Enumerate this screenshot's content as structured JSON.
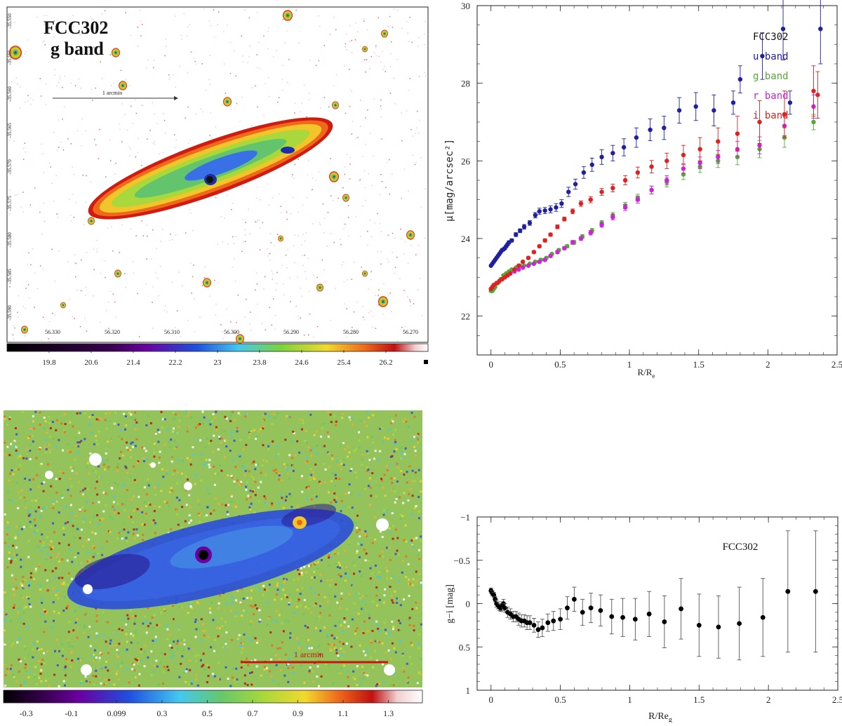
{
  "chart_data": [
    {
      "type": "image",
      "panel": "top-left",
      "title": "FCC302",
      "subtitle": "g band",
      "scale_label": "1 arcmin",
      "ra_ticks": [
        "56.330",
        "56.320",
        "56.310",
        "56.300",
        "56.290",
        "56.280",
        "56.270"
      ],
      "dec_ticks": [
        "-35.550",
        "-35.555",
        "-35.560",
        "-35.565",
        "-35.570",
        "-35.575",
        "-35.580",
        "-35.585",
        "-35.590"
      ],
      "colorbar_ticks": [
        "19.8",
        "20.6",
        "21.4",
        "22.2",
        "23",
        "23.8",
        "24.6",
        "25.4",
        "26.2"
      ],
      "colorbar_range": [
        19.0,
        27.0
      ]
    },
    {
      "type": "scatter",
      "panel": "top-right",
      "title": "FCC302",
      "xlabel": "R/R",
      "xlabel_sub": "e",
      "ylabel": "μ[mag/arcsec²]",
      "xlim": [
        -0.1,
        2.5
      ],
      "ylim": [
        30,
        21
      ],
      "xticks": [
        "0",
        "0.5",
        "1",
        "1.5",
        "2",
        "2.5"
      ],
      "yticks": [
        "22",
        "24",
        "26",
        "28",
        "30"
      ],
      "legend": [
        "FCC302",
        "u band",
        "g band",
        "r band",
        "i band"
      ],
      "series": [
        {
          "name": "u band",
          "color": "#1f1fa0",
          "x": [
            0.0,
            0.01,
            0.02,
            0.03,
            0.04,
            0.05,
            0.06,
            0.07,
            0.08,
            0.09,
            0.1,
            0.11,
            0.12,
            0.13,
            0.15,
            0.18,
            0.21,
            0.24,
            0.28,
            0.32,
            0.35,
            0.39,
            0.43,
            0.47,
            0.51,
            0.56,
            0.61,
            0.67,
            0.73,
            0.8,
            0.88,
            0.96,
            1.05,
            1.15,
            1.25,
            1.36,
            1.48,
            1.61,
            1.75,
            1.8,
            1.96,
            2.11,
            2.16,
            2.38
          ],
          "y": [
            23.3,
            23.35,
            23.4,
            23.45,
            23.5,
            23.55,
            23.6,
            23.65,
            23.7,
            23.72,
            23.75,
            23.8,
            23.85,
            23.9,
            23.95,
            24.1,
            24.2,
            24.3,
            24.4,
            24.6,
            24.7,
            24.72,
            24.75,
            24.8,
            24.9,
            25.2,
            25.4,
            25.7,
            25.9,
            26.1,
            26.2,
            26.35,
            26.6,
            26.8,
            26.85,
            27.3,
            27.4,
            27.3,
            27.5,
            28.1,
            28.7,
            29.4,
            27.5,
            29.4
          ],
          "err": [
            0.02,
            0.02,
            0.02,
            0.02,
            0.02,
            0.02,
            0.02,
            0.02,
            0.03,
            0.03,
            0.03,
            0.03,
            0.03,
            0.04,
            0.04,
            0.05,
            0.05,
            0.06,
            0.06,
            0.07,
            0.08,
            0.08,
            0.09,
            0.1,
            0.1,
            0.12,
            0.13,
            0.15,
            0.17,
            0.19,
            0.2,
            0.22,
            0.25,
            0.28,
            0.3,
            0.33,
            0.36,
            0.4,
            0.3,
            0.35,
            0.6,
            0.8,
            0.3,
            0.9
          ]
        },
        {
          "name": "g band",
          "color": "#55aa33",
          "x": [
            0.0,
            0.01,
            0.02,
            0.03,
            0.05,
            0.07,
            0.09,
            0.11,
            0.13,
            0.15,
            0.18,
            0.21,
            0.24,
            0.28,
            0.32,
            0.36,
            0.4,
            0.44,
            0.49,
            0.55,
            0.6,
            0.66,
            0.73,
            0.8,
            0.88,
            0.97,
            1.06,
            1.16,
            1.27,
            1.39,
            1.51,
            1.64,
            1.78,
            1.94,
            2.12,
            2.33
          ],
          "y": [
            22.65,
            22.65,
            22.7,
            22.75,
            22.85,
            22.95,
            23.05,
            23.1,
            23.15,
            23.2,
            23.25,
            23.3,
            23.3,
            23.35,
            23.4,
            23.45,
            23.5,
            23.6,
            23.7,
            23.8,
            23.9,
            24.05,
            24.2,
            24.4,
            24.6,
            24.85,
            25.05,
            25.25,
            25.45,
            25.65,
            25.85,
            26.0,
            26.1,
            26.3,
            26.6,
            27.0
          ],
          "err": [
            0.01,
            0.01,
            0.01,
            0.01,
            0.01,
            0.01,
            0.01,
            0.01,
            0.01,
            0.02,
            0.02,
            0.02,
            0.02,
            0.02,
            0.03,
            0.03,
            0.03,
            0.03,
            0.04,
            0.04,
            0.05,
            0.05,
            0.06,
            0.06,
            0.07,
            0.08,
            0.09,
            0.1,
            0.12,
            0.13,
            0.15,
            0.17,
            0.2,
            0.22,
            0.25,
            0.2
          ]
        },
        {
          "name": "r band",
          "color": "#cc22dd",
          "x": [
            0.0,
            0.01,
            0.02,
            0.04,
            0.06,
            0.08,
            0.1,
            0.12,
            0.14,
            0.17,
            0.2,
            0.23,
            0.27,
            0.31,
            0.35,
            0.39,
            0.43,
            0.48,
            0.53,
            0.59,
            0.65,
            0.72,
            0.8,
            0.88,
            0.97,
            1.06,
            1.16,
            1.27,
            1.39,
            1.51,
            1.64,
            1.78,
            1.94,
            2.12,
            2.33
          ],
          "y": [
            22.7,
            22.75,
            22.8,
            22.85,
            22.9,
            22.95,
            23.0,
            23.05,
            23.1,
            23.15,
            23.2,
            23.25,
            23.3,
            23.35,
            23.4,
            23.45,
            23.55,
            23.65,
            23.75,
            23.9,
            24.0,
            24.15,
            24.35,
            24.55,
            24.8,
            25.0,
            25.25,
            25.5,
            25.8,
            25.95,
            26.1,
            26.3,
            26.4,
            26.9,
            27.4
          ],
          "err": [
            0.01,
            0.01,
            0.01,
            0.01,
            0.01,
            0.01,
            0.01,
            0.01,
            0.01,
            0.02,
            0.02,
            0.02,
            0.02,
            0.02,
            0.03,
            0.03,
            0.03,
            0.04,
            0.04,
            0.05,
            0.05,
            0.06,
            0.06,
            0.07,
            0.08,
            0.09,
            0.1,
            0.12,
            0.13,
            0.15,
            0.17,
            0.2,
            0.22,
            0.25,
            0.3
          ]
        },
        {
          "name": "i band",
          "color": "#dd2222",
          "x": [
            0.0,
            0.01,
            0.02,
            0.04,
            0.06,
            0.08,
            0.1,
            0.12,
            0.14,
            0.17,
            0.2,
            0.23,
            0.27,
            0.31,
            0.35,
            0.39,
            0.43,
            0.48,
            0.53,
            0.59,
            0.65,
            0.72,
            0.8,
            0.88,
            0.97,
            1.06,
            1.16,
            1.27,
            1.39,
            1.51,
            1.64,
            1.78,
            1.94,
            2.12,
            2.33,
            2.36
          ],
          "y": [
            22.7,
            22.75,
            22.8,
            22.85,
            22.9,
            22.95,
            23.0,
            23.05,
            23.1,
            23.2,
            23.3,
            23.4,
            23.5,
            23.65,
            23.8,
            23.95,
            24.1,
            24.3,
            24.5,
            24.7,
            24.9,
            25.0,
            25.2,
            25.3,
            25.5,
            25.7,
            25.85,
            26.0,
            26.15,
            26.3,
            26.5,
            26.7,
            27.0,
            27.2,
            27.8,
            27.7
          ],
          "err": [
            0.01,
            0.01,
            0.01,
            0.01,
            0.01,
            0.01,
            0.01,
            0.01,
            0.02,
            0.02,
            0.02,
            0.02,
            0.03,
            0.03,
            0.03,
            0.04,
            0.04,
            0.05,
            0.05,
            0.06,
            0.07,
            0.08,
            0.09,
            0.1,
            0.12,
            0.14,
            0.16,
            0.2,
            0.25,
            0.3,
            0.35,
            0.45,
            0.55,
            0.6,
            0.65,
            0.6
          ]
        }
      ]
    },
    {
      "type": "image",
      "panel": "bottom-left",
      "scale_label": "1 arcmin",
      "colorbar_ticks": [
        "-0.3",
        "-0.1",
        "0.099",
        "0.3",
        "0.5",
        "0.7",
        "0.9",
        "1.1",
        "1.3"
      ],
      "colorbar_range": [
        -0.4,
        1.45
      ]
    },
    {
      "type": "scatter",
      "panel": "bottom-right",
      "title": "FCC302",
      "xlabel": "R/Re",
      "xlabel_sub": "g",
      "ylabel": "g−i [mag]",
      "xlim": [
        -0.1,
        2.5
      ],
      "ylim": [
        -1,
        1
      ],
      "xticks": [
        "0",
        "0.5",
        "1",
        "1.5",
        "2",
        "2.5"
      ],
      "yticks": [
        "−1",
        "−0.5",
        "0",
        "0.5",
        "1"
      ],
      "series": [
        {
          "name": "g-i",
          "color": "#000000",
          "x": [
            0.0,
            0.01,
            0.02,
            0.03,
            0.04,
            0.05,
            0.06,
            0.07,
            0.08,
            0.09,
            0.1,
            0.12,
            0.14,
            0.16,
            0.18,
            0.2,
            0.22,
            0.24,
            0.26,
            0.28,
            0.31,
            0.34,
            0.37,
            0.41,
            0.45,
            0.5,
            0.55,
            0.6,
            0.66,
            0.72,
            0.79,
            0.87,
            0.95,
            1.04,
            1.14,
            1.25,
            1.37,
            1.5,
            1.64,
            1.79,
            1.96,
            2.14,
            2.34
          ],
          "y": [
            -0.15,
            -0.12,
            -0.1,
            -0.05,
            0.0,
            0.02,
            0.04,
            0.05,
            0.03,
            0.0,
            0.05,
            0.1,
            0.12,
            0.15,
            0.15,
            0.18,
            0.2,
            0.2,
            0.22,
            0.22,
            0.25,
            0.3,
            0.28,
            0.22,
            0.2,
            0.18,
            0.05,
            -0.05,
            0.1,
            0.05,
            0.08,
            0.15,
            0.16,
            0.18,
            0.12,
            0.21,
            0.06,
            0.25,
            0.27,
            0.23,
            0.16,
            -0.14,
            -0.14
          ],
          "err": [
            0.03,
            0.03,
            0.03,
            0.03,
            0.04,
            0.04,
            0.04,
            0.04,
            0.05,
            0.05,
            0.05,
            0.06,
            0.06,
            0.06,
            0.06,
            0.07,
            0.07,
            0.07,
            0.08,
            0.08,
            0.08,
            0.09,
            0.1,
            0.1,
            0.11,
            0.12,
            0.13,
            0.14,
            0.15,
            0.17,
            0.18,
            0.2,
            0.22,
            0.24,
            0.26,
            0.3,
            0.35,
            0.36,
            0.36,
            0.42,
            0.45,
            0.7,
            0.7
          ]
        }
      ]
    }
  ]
}
